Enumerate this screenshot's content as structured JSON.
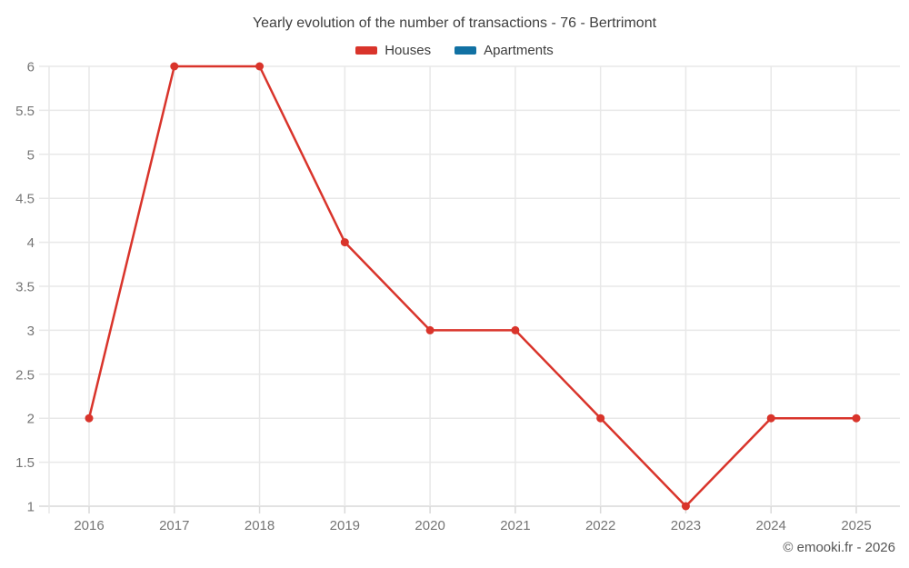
{
  "chart_data": {
    "type": "line",
    "title": "Yearly evolution of the number of transactions - 76 - Bertrimont",
    "categories": [
      "2016",
      "2017",
      "2018",
      "2019",
      "2020",
      "2021",
      "2022",
      "2023",
      "2024",
      "2025"
    ],
    "series": [
      {
        "name": "Houses",
        "color": "#d9342b",
        "values": [
          2,
          6,
          6,
          4,
          3,
          3,
          2,
          1,
          2,
          2
        ]
      },
      {
        "name": "Apartments",
        "color": "#1171a3",
        "values": []
      }
    ],
    "xlabel": "",
    "ylabel": "",
    "ylim": [
      1,
      6
    ],
    "y_tick_step": 0.5,
    "y_tick_labels": [
      "1",
      "1.5",
      "2",
      "2.5",
      "3",
      "3.5",
      "4",
      "4.5",
      "5",
      "5.5",
      "6"
    ],
    "grid": true,
    "legend_position": "top",
    "marker": "circle"
  },
  "footer": {
    "attribution": "© emooki.fr - 2026"
  }
}
